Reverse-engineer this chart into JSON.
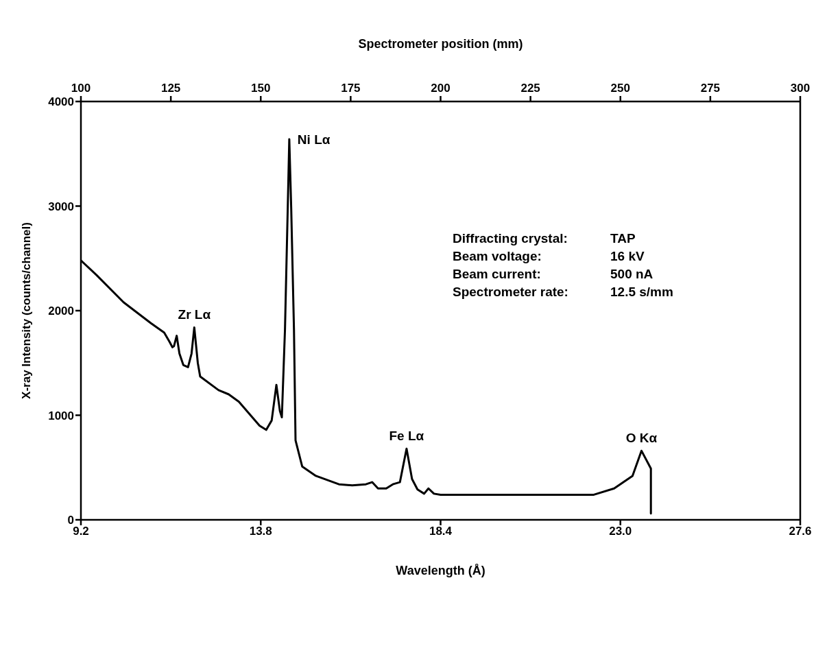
{
  "chart_data": {
    "type": "line",
    "xlabel": "Wavelength (Å)",
    "x2label": "Spectrometer position (mm)",
    "ylabel": "X-ray Intensity (counts/channel)",
    "xlim": [
      9.2,
      27.6
    ],
    "xticks": [
      9.2,
      13.8,
      18.4,
      {
        "value": 23,
        "label": "23.0"
      },
      27.6
    ],
    "x2lim": [
      100,
      300
    ],
    "x2ticks": [
      100,
      125,
      150,
      175,
      200,
      225,
      250,
      275,
      300
    ],
    "ylim": [
      0,
      4000
    ],
    "yticks": [
      0,
      1000,
      2000,
      3000,
      4000
    ],
    "grid": false,
    "legend": false,
    "marker": "none",
    "line_style": "solid",
    "series": [
      {
        "color": "#000000",
        "x": [
          9.2,
          9.6,
          10.29,
          10.99,
          11.33,
          11.47,
          11.54,
          11.58,
          11.65,
          11.72,
          11.82,
          11.94,
          12.03,
          12.1,
          12.19,
          12.25,
          12.72,
          12.98,
          13.24,
          13.77,
          13.94,
          14.08,
          14.2,
          14.29,
          14.34,
          14.42,
          14.49,
          14.53,
          14.58,
          14.65,
          14.69,
          14.86,
          15.21,
          15.8,
          16.14,
          16.49,
          16.65,
          16.8,
          17.01,
          17.18,
          17.36,
          17.53,
          17.67,
          17.81,
          17.98,
          18.09,
          18.23,
          18.4,
          22.32,
          22.84,
          23.31,
          23.54,
          23.78,
          23.78
        ],
        "values": [
          2480,
          2340,
          2080,
          1880,
          1790,
          1700,
          1650,
          1660,
          1760,
          1590,
          1480,
          1460,
          1590,
          1840,
          1500,
          1370,
          1240,
          1200,
          1130,
          900,
          860,
          950,
          1290,
          1040,
          980,
          1820,
          2970,
          3640,
          2970,
          1820,
          760,
          510,
          420,
          340,
          330,
          340,
          360,
          300,
          300,
          340,
          360,
          680,
          390,
          290,
          250,
          300,
          250,
          240,
          240,
          300,
          420,
          660,
          490,
          60
        ]
      }
    ],
    "annotations": [
      {
        "text": "Zr Lα",
        "x": 12.1,
        "y": 1840
      },
      {
        "text": "Ni Lα",
        "x": 14.53,
        "y": 3640
      },
      {
        "text": "Fe Lα",
        "x": 17.53,
        "y": 680
      },
      {
        "text": "O Kα",
        "x": 23.54,
        "y": 660
      },
      "Diffracting crystal:",
      "TAP",
      "Beam voltage:",
      "16 kV",
      "Beam current:",
      "500 nA",
      "Spectrometer rate:",
      "12.5 s/mm"
    ]
  }
}
